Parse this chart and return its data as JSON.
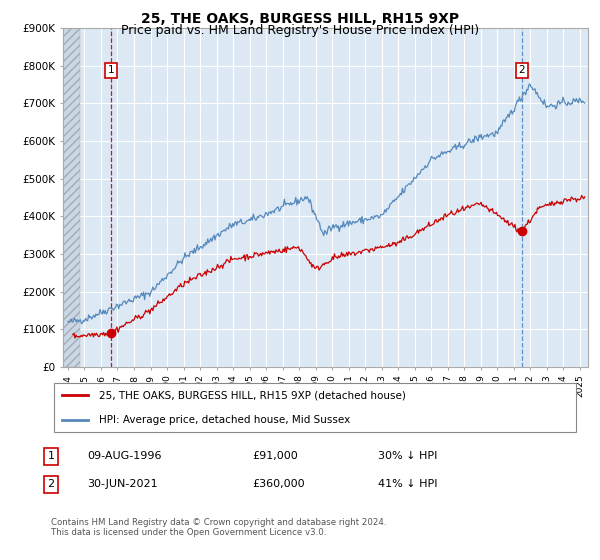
{
  "title": "25, THE OAKS, BURGESS HILL, RH15 9XP",
  "subtitle": "Price paid vs. HM Land Registry's House Price Index (HPI)",
  "legend_line1": "25, THE OAKS, BURGESS HILL, RH15 9XP (detached house)",
  "legend_line2": "HPI: Average price, detached house, Mid Sussex",
  "table_row1_date": "09-AUG-1996",
  "table_row1_price": "£91,000",
  "table_row1_hpi": "30% ↓ HPI",
  "table_row2_date": "30-JUN-2021",
  "table_row2_price": "£360,000",
  "table_row2_hpi": "41% ↓ HPI",
  "footnote": "Contains HM Land Registry data © Crown copyright and database right 2024.\nThis data is licensed under the Open Government Licence v3.0.",
  "sale1_date": 1996.62,
  "sale1_price": 91000,
  "sale2_date": 2021.5,
  "sale2_price": 360000,
  "xmin": 1993.7,
  "xmax": 2025.5,
  "ymin": 0,
  "ymax": 900000,
  "yticks": [
    0,
    100000,
    200000,
    300000,
    400000,
    500000,
    600000,
    700000,
    800000,
    900000
  ],
  "background_color": "#ffffff",
  "plot_bg_color": "#dce9f5",
  "line_red": "#cc0000",
  "line_blue": "#5588bb",
  "marker_red": "#cc0000",
  "title_fontsize": 10,
  "subtitle_fontsize": 9,
  "hatch_bg": "#c8d8e8"
}
